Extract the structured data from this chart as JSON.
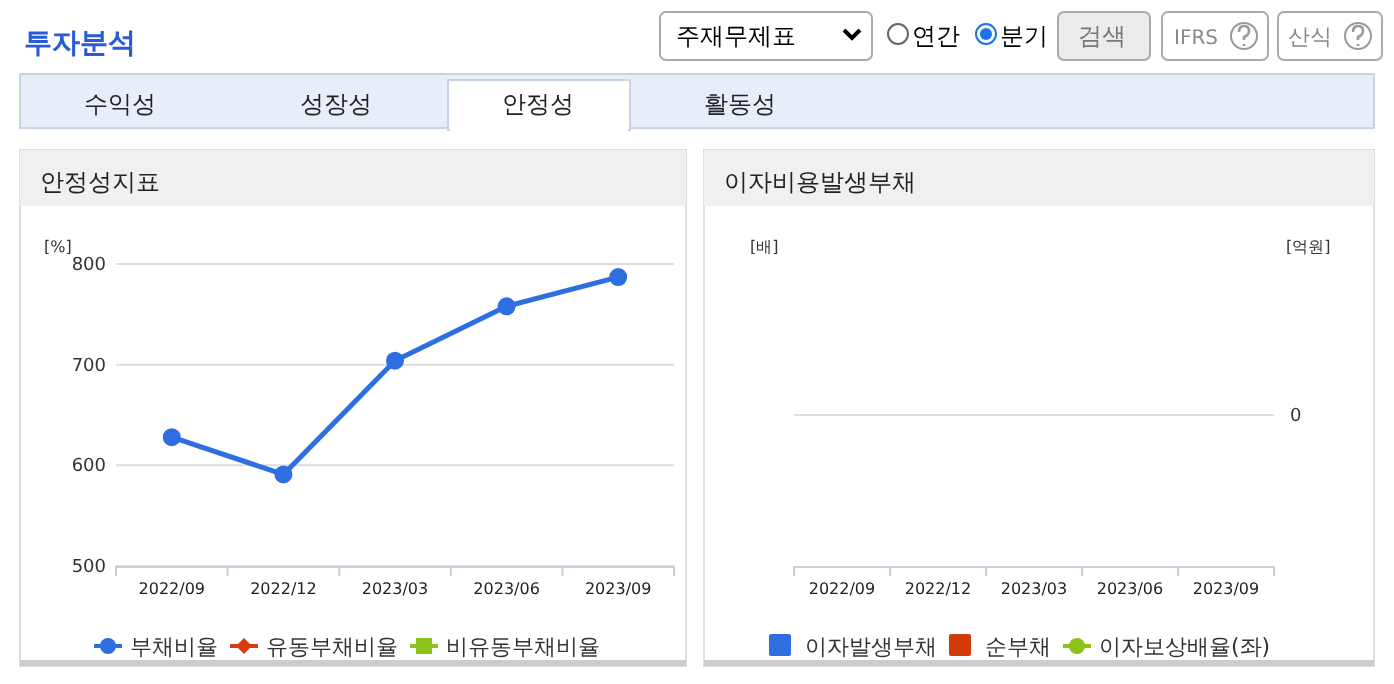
{
  "chart_data": [
    {
      "type": "line",
      "title": "안정성지표",
      "ylabel": "[%]",
      "categories": [
        "2022/09",
        "2022/12",
        "2023/03",
        "2023/06",
        "2023/09"
      ],
      "series": [
        {
          "name": "부채비율",
          "color": "#2f6ee0",
          "marker": "circle",
          "values": [
            628,
            591,
            704,
            758,
            787
          ]
        },
        {
          "name": "유동부채비율",
          "color": "#d93a12",
          "marker": "diamond",
          "values": [
            null,
            null,
            null,
            null,
            null
          ]
        },
        {
          "name": "비유동부채비율",
          "color": "#8cc21a",
          "marker": "square",
          "values": [
            null,
            null,
            null,
            null,
            null
          ]
        }
      ],
      "ylim": [
        500,
        800
      ],
      "yticks": [
        500,
        600,
        700,
        800
      ],
      "grid": "y",
      "legend": "bottom",
      "annotations": [
        "투자분석",
        "주재무제표",
        "연간",
        "분기",
        "검색",
        "IFRS",
        "산식",
        "수익성",
        "성장성",
        "안정성",
        "활동성"
      ]
    },
    {
      "type": "other",
      "title": "이자비용발생부채",
      "ylabel": "[배]",
      "y2label": "[억원]",
      "categories": [
        "2022/09",
        "2022/12",
        "2023/03",
        "2023/06",
        "2023/09"
      ],
      "series": [
        {
          "name": "이자발생부채",
          "color": "#2f6ee0",
          "values": [
            null,
            null,
            null,
            null,
            null
          ]
        },
        {
          "name": "순부채",
          "color": "#d23a06",
          "values": [
            null,
            null,
            null,
            null,
            null
          ]
        },
        {
          "name": "이자보상배율(좌)",
          "type": "line",
          "marker": "circle",
          "color": "#8cc21a",
          "values": [
            null,
            null,
            null,
            null,
            null
          ]
        }
      ],
      "legend": "bottom",
      "annotations": [
        "0"
      ]
    }
  ]
}
